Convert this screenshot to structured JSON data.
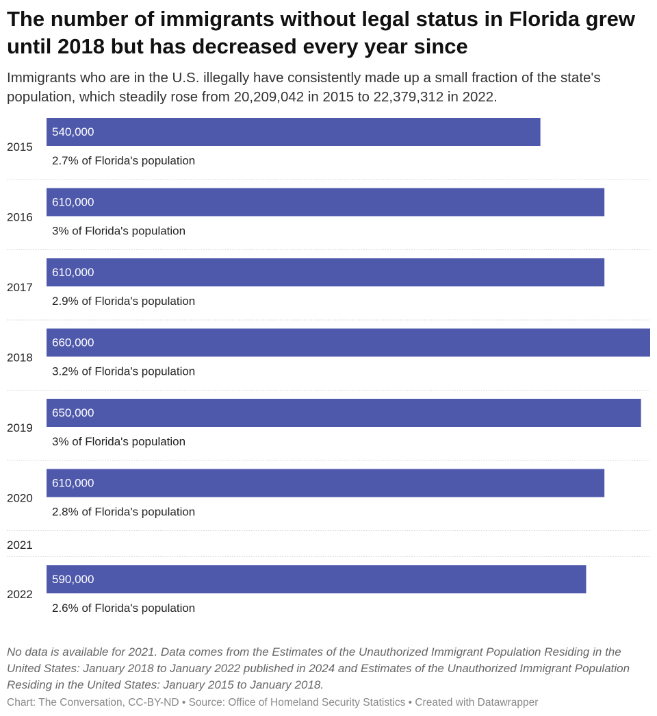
{
  "header": {
    "title": "The number of immigrants without legal status in Florida grew until 2018 but has decreased every year since",
    "subtitle": "Immigrants who are in the U.S. illegally have consistently made up a small fraction of the state's population, which steadily rose from 20,209,042 in 2015 to 22,379,312 in 2022."
  },
  "chart_data": {
    "type": "bar",
    "orientation": "horizontal",
    "categories": [
      "2015",
      "2016",
      "2017",
      "2018",
      "2019",
      "2020",
      "2021",
      "2022"
    ],
    "values": [
      540000,
      610000,
      610000,
      660000,
      650000,
      610000,
      null,
      590000
    ],
    "value_labels": [
      "540,000",
      "610,000",
      "610,000",
      "660,000",
      "650,000",
      "610,000",
      "",
      "590,000"
    ],
    "annotations": [
      "2.7% of Florida's population",
      "3% of Florida's population",
      "2.9% of Florida's population",
      "3.2% of Florida's population",
      "3% of Florida's population",
      "2.8% of Florida's population",
      "",
      "2.6% of Florida's population"
    ],
    "xlim": [
      0,
      660000
    ],
    "bar_color": "#4f59ac",
    "value_label_color": "#ffffff",
    "grid": false
  },
  "footer": {
    "notes": "No data is available for 2021. Data comes from the Estimates of the Unauthorized Immigrant Population Residing in the United States: January 2018 to January 2022 published in 2024 and Estimates of the Unauthorized Immigrant Population Residing in the United States: January 2015 to January 2018.",
    "credits": "Chart: The Conversation, CC-BY-ND • Source: Office of Homeland Security Statistics • Created with Datawrapper"
  }
}
